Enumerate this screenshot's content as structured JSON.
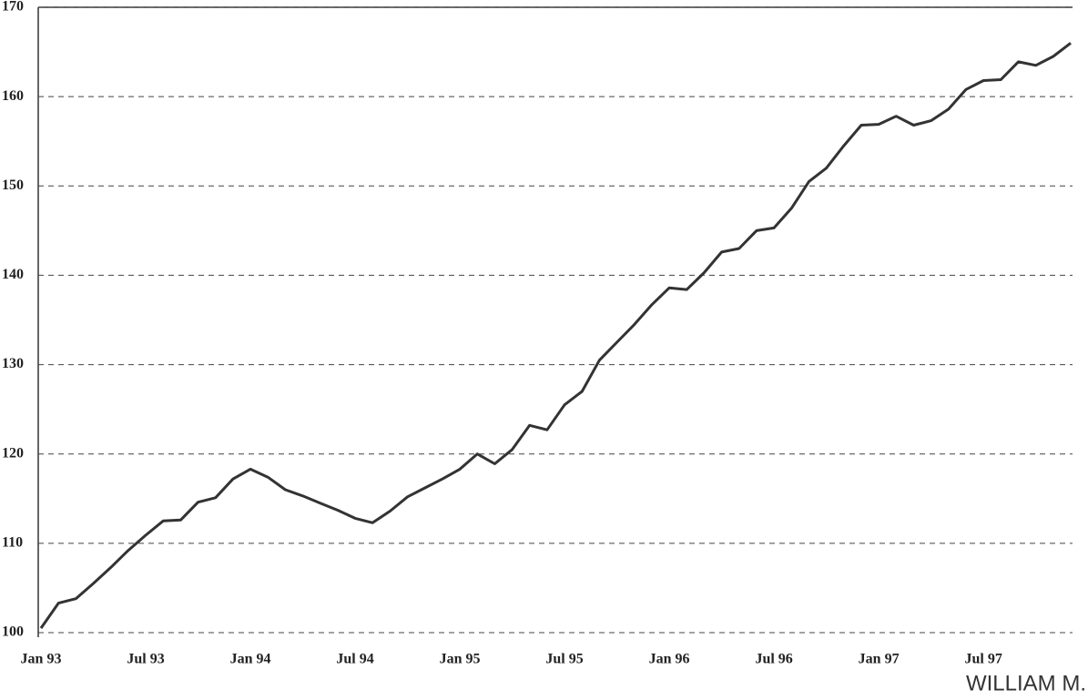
{
  "chart_data": {
    "type": "line",
    "categories": [
      "Jan 93",
      null,
      null,
      null,
      null,
      null,
      "Jul 93",
      null,
      null,
      null,
      null,
      null,
      "Jan 94",
      null,
      null,
      null,
      null,
      null,
      "Jul 94",
      null,
      null,
      null,
      null,
      null,
      "Jan 95",
      null,
      null,
      null,
      null,
      null,
      "Jul 95",
      null,
      null,
      null,
      null,
      null,
      "Jan 96",
      null,
      null,
      null,
      null,
      null,
      "Jul 96",
      null,
      null,
      null,
      null,
      null,
      "Jan 97",
      null,
      null,
      null,
      null,
      null,
      "Jul 97",
      null,
      null,
      null,
      null,
      null
    ],
    "values": [
      100.5,
      103.3,
      103.8,
      105.5,
      107.3,
      109.2,
      110.9,
      112.5,
      112.6,
      114.6,
      115.1,
      117.2,
      118.3,
      117.4,
      116.0,
      115.3,
      114.5,
      113.7,
      112.8,
      112.3,
      113.6,
      115.2,
      116.2,
      117.2,
      118.3,
      120.0,
      118.9,
      120.5,
      123.2,
      122.7,
      125.5,
      127.0,
      130.5,
      132.5,
      134.5,
      136.7,
      138.6,
      138.4,
      140.3,
      142.6,
      143.0,
      145.0,
      145.3,
      147.5,
      150.5,
      152.0,
      154.5,
      156.8,
      156.9,
      157.8,
      156.8,
      157.3,
      158.6,
      160.8,
      161.8,
      161.9,
      163.9,
      163.5,
      164.5,
      166.0
    ],
    "color": "#333333",
    "ylim": [
      100,
      170
    ],
    "yticks": [
      100,
      110,
      120,
      130,
      140,
      150,
      160,
      170
    ],
    "grid": true,
    "credit": "WILLIAM M."
  }
}
